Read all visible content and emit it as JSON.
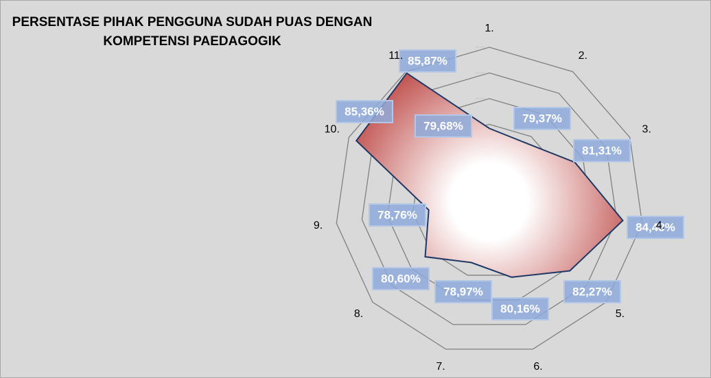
{
  "chart_data": {
    "type": "radar",
    "title": "PERSENTASE PIHAK PENGGUNA SUDAH PUAS DENGAN KOMPETENSI PAEDAGOGIK",
    "categories": [
      "1.",
      "2.",
      "3.",
      "4.",
      "5.",
      "6.",
      "7.",
      "8.",
      "9.",
      "10.",
      "11."
    ],
    "values": [
      79.68,
      79.37,
      81.31,
      84.48,
      82.27,
      80.16,
      78.97,
      80.6,
      78.76,
      85.36,
      85.87
    ],
    "value_labels": [
      "79,68%",
      "79,37%",
      "81,31%",
      "84,48%",
      "82,27%",
      "80,16%",
      "78,97%",
      "80,60%",
      "78,76%",
      "85,36%",
      "85,87%"
    ],
    "color": "#c0504d",
    "ylim": [
      74,
      86
    ],
    "yticks": [
      {
        "value": 74,
        "label": "74,00%"
      },
      {
        "value": 76,
        "label": "76,00%"
      },
      {
        "value": 78,
        "label": "78,00%"
      },
      {
        "value": 80,
        "label": "80,00%"
      },
      {
        "value": 82,
        "label": "82,00%"
      },
      {
        "value": 84,
        "label": "84,00%"
      },
      {
        "value": 86,
        "label": "86,00%"
      }
    ],
    "grid": true
  }
}
